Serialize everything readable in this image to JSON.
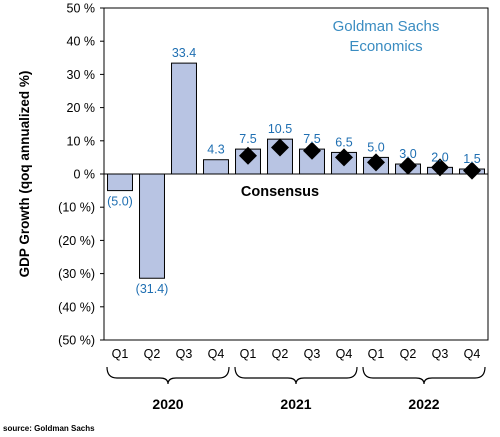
{
  "chart_data": {
    "type": "bar",
    "ylabel": "GDP Growth (qoq annualized %)",
    "ylim": [
      -50,
      50
    ],
    "yticks": [
      {
        "value": 50,
        "label": "50 %"
      },
      {
        "value": 40,
        "label": "40 %"
      },
      {
        "value": 30,
        "label": "30 %"
      },
      {
        "value": 20,
        "label": "20 %"
      },
      {
        "value": 10,
        "label": "10 %"
      },
      {
        "value": 0,
        "label": "0 %"
      },
      {
        "value": -10,
        "label": "(10 %)"
      },
      {
        "value": -20,
        "label": "(20 %)"
      },
      {
        "value": -30,
        "label": "(30 %)"
      },
      {
        "value": -40,
        "label": "(40 %)"
      },
      {
        "value": -50,
        "label": "(50 %)"
      }
    ],
    "categories": [
      "Q1",
      "Q2",
      "Q3",
      "Q4",
      "Q1",
      "Q2",
      "Q3",
      "Q4",
      "Q1",
      "Q2",
      "Q3",
      "Q4"
    ],
    "years": [
      {
        "label": "2020",
        "start": 0,
        "end": 3
      },
      {
        "label": "2021",
        "start": 4,
        "end": 7
      },
      {
        "label": "2022",
        "start": 8,
        "end": 11
      }
    ],
    "series": [
      {
        "values": [
          -5.0,
          -31.4,
          33.4,
          4.3,
          7.5,
          10.5,
          7.5,
          6.5,
          5.0,
          3.0,
          2.0,
          1.5
        ],
        "labels": [
          "(5.0)",
          "(31.4)",
          "33.4",
          "4.3",
          "7.5",
          "10.5",
          "7.5",
          "6.5",
          "5.0",
          "3.0",
          "2.0",
          "1.5"
        ],
        "color": "#b8c4e3"
      },
      {
        "name": "Consensus",
        "type": "scatter",
        "marker": "diamond",
        "x_indices": [
          4,
          5,
          6,
          7,
          8,
          9,
          10,
          11
        ],
        "values": [
          5.5,
          8.0,
          7.0,
          5.0,
          3.5,
          2.5,
          2.0,
          1.0
        ],
        "color": "#000000"
      }
    ],
    "annotations": [
      {
        "text": "Consensus"
      }
    ],
    "grid": false
  },
  "branding": {
    "line1": "Goldman Sachs",
    "line2": "Economics"
  },
  "source": "source: Goldman Sachs"
}
